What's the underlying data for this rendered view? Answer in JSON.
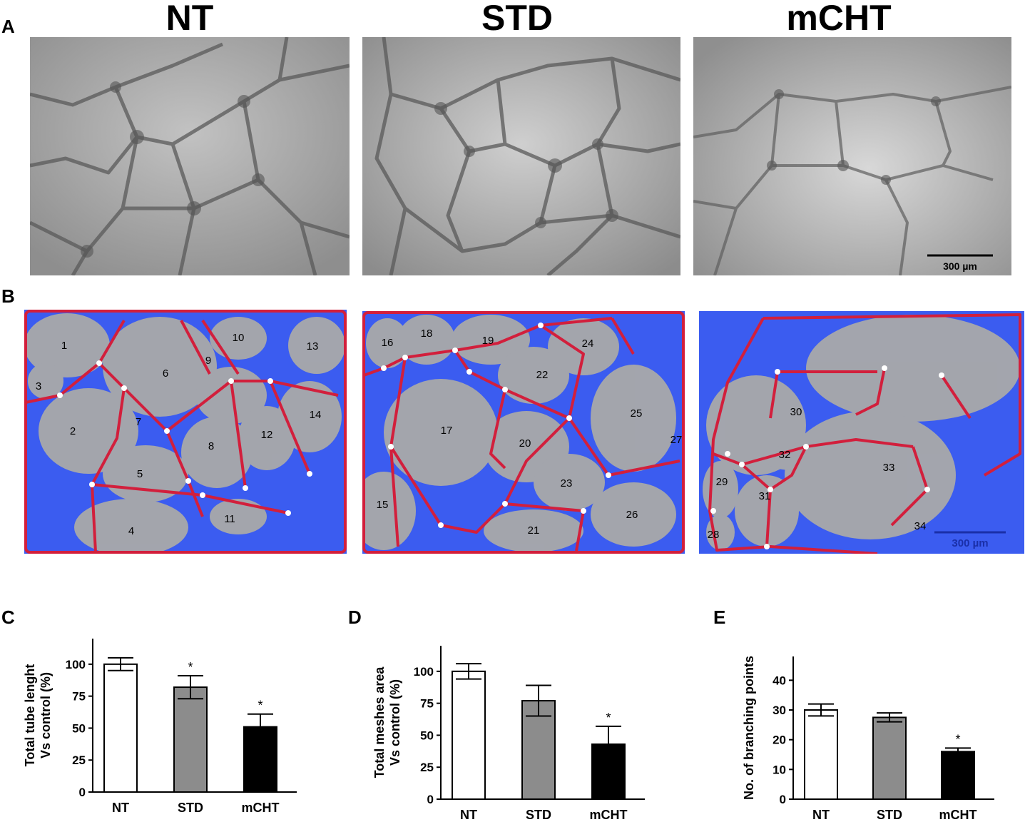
{
  "panel_labels": {
    "a": "A",
    "b": "B",
    "c": "C",
    "d": "D",
    "e": "E"
  },
  "column_titles": [
    "NT",
    "STD",
    "mCHT"
  ],
  "scale_bar_label": "300 µm",
  "mesh_numbers": {
    "nt": [
      "1",
      "2",
      "3",
      "4",
      "5",
      "6",
      "7",
      "8",
      "9",
      "10",
      "11",
      "12",
      "13",
      "14"
    ],
    "std": [
      "15",
      "16",
      "17",
      "18",
      "19",
      "20",
      "21",
      "22",
      "23",
      "24",
      "25",
      "26",
      "27"
    ],
    "mcht": [
      "28",
      "29",
      "30",
      "31",
      "32",
      "33",
      "34"
    ]
  },
  "colors": {
    "micrograph_gray": "#a6a6a6",
    "mesh_blue": "#3b5cf0",
    "segment_red": "#d21f3c",
    "label_yellow": "#f4f000",
    "bar_nt": "#ffffff",
    "bar_std": "#8c8c8c",
    "bar_mcht": "#000000"
  },
  "chart_data": [
    {
      "type": "bar",
      "panel": "C",
      "categories": [
        "NT",
        "STD",
        "mCHT"
      ],
      "values": [
        100,
        82,
        51
      ],
      "errors": [
        5,
        9,
        10
      ],
      "significance": [
        "",
        "*",
        "*"
      ],
      "ylabel_line1": "Total tube lenght",
      "ylabel_line2": "Vs control (%)",
      "ylim": [
        0,
        120
      ],
      "yticks": [
        0,
        25,
        50,
        75,
        100
      ]
    },
    {
      "type": "bar",
      "panel": "D",
      "categories": [
        "NT",
        "STD",
        "mCHT"
      ],
      "values": [
        100,
        77,
        43
      ],
      "errors": [
        6,
        12,
        14
      ],
      "significance": [
        "",
        "",
        "*"
      ],
      "ylabel_line1": "Total meshes area",
      "ylabel_line2": "Vs control (%)",
      "ylim": [
        0,
        120
      ],
      "yticks": [
        0,
        25,
        50,
        75,
        100
      ]
    },
    {
      "type": "bar",
      "panel": "E",
      "categories": [
        "NT",
        "STD",
        "mCHT"
      ],
      "values": [
        30,
        27.5,
        16
      ],
      "errors": [
        2,
        1.5,
        1.2
      ],
      "significance": [
        "",
        "",
        "*"
      ],
      "ylabel_line1": "No. of branching points",
      "ylabel_line2": "",
      "ylim": [
        0,
        48
      ],
      "yticks": [
        0,
        10,
        20,
        30,
        40
      ]
    }
  ]
}
